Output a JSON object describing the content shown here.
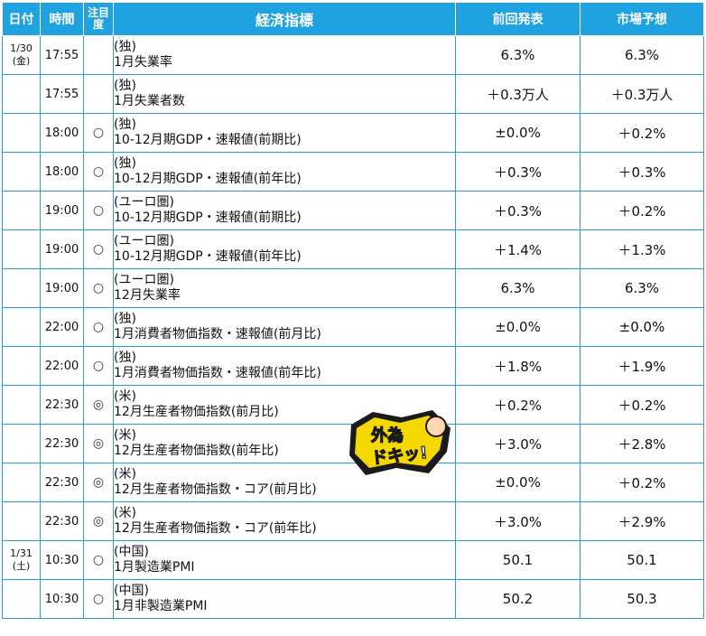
{
  "headers": {
    "date": "日付",
    "time": "時間",
    "attention": "注目度",
    "indicator": "経済指標",
    "previous": "前回発表",
    "forecast": "市場予想"
  },
  "rows": [
    {
      "date": "1/30\n(金)",
      "time": "17:55",
      "mark": "",
      "region": "(独)",
      "name": "1月失業率",
      "previous": "6.3%",
      "forecast": "6.3%"
    },
    {
      "date": "",
      "time": "17:55",
      "mark": "",
      "region": "(独)",
      "name": "1月失業者数",
      "previous": "＋0.3万人",
      "forecast": "＋0.3万人"
    },
    {
      "date": "",
      "time": "18:00",
      "mark": "○",
      "region": "(独)",
      "name": "10-12月期GDP・速報値(前期比)",
      "previous": "±0.0%",
      "forecast": "＋0.2%"
    },
    {
      "date": "",
      "time": "18:00",
      "mark": "○",
      "region": "(独)",
      "name": "10-12月期GDP・速報値(前年比)",
      "previous": "＋0.3%",
      "forecast": "＋0.3%"
    },
    {
      "date": "",
      "time": "19:00",
      "mark": "○",
      "region": "(ユーロ圏)",
      "name": "10-12月期GDP・速報値(前期比)",
      "previous": "＋0.3%",
      "forecast": "＋0.2%"
    },
    {
      "date": "",
      "time": "19:00",
      "mark": "○",
      "region": "(ユーロ圏)",
      "name": "10-12月期GDP・速報値(前年比)",
      "previous": "＋1.4%",
      "forecast": "＋1.3%"
    },
    {
      "date": "",
      "time": "19:00",
      "mark": "○",
      "region": "(ユーロ圏)",
      "name": "12月失業率",
      "previous": "6.3%",
      "forecast": "6.3%"
    },
    {
      "date": "",
      "time": "22:00",
      "mark": "○",
      "region": "(独)",
      "name": "1月消費者物価指数・速報値(前月比)",
      "previous": "±0.0%",
      "forecast": "±0.0%"
    },
    {
      "date": "",
      "time": "22:00",
      "mark": "○",
      "region": "(独)",
      "name": "1月消費者物価指数・速報値(前年比)",
      "previous": "＋1.8%",
      "forecast": "＋1.9%"
    },
    {
      "date": "",
      "time": "22:30",
      "mark": "◎",
      "region": "(米)",
      "name": "12月生産者物価指数(前月比)",
      "previous": "＋0.2%",
      "forecast": "＋0.2%"
    },
    {
      "date": "",
      "time": "22:30",
      "mark": "◎",
      "region": "(米)",
      "name": "12月生産者物価指数(前年比)",
      "previous": "＋3.0%",
      "forecast": "＋2.8%"
    },
    {
      "date": "",
      "time": "22:30",
      "mark": "◎",
      "region": "(米)",
      "name": "12月生産者物価指数・コア(前月比)",
      "previous": "±0.0%",
      "forecast": "＋0.2%"
    },
    {
      "date": "",
      "time": "22:30",
      "mark": "◎",
      "region": "(米)",
      "name": "12月生産者物価指数・コア(前年比)",
      "previous": "＋3.0%",
      "forecast": "＋2.9%"
    },
    {
      "date": "1/31\n(土)",
      "time": "10:30",
      "mark": "○",
      "region": "(中国)",
      "name": "1月製造業PMI",
      "previous": "50.1",
      "forecast": "50.1"
    },
    {
      "date": "",
      "time": "10:30",
      "mark": "○",
      "region": "(中国)",
      "name": "1月非製造業PMI",
      "previous": "50.2",
      "forecast": "50.3"
    }
  ],
  "badge": {
    "text": "外為ドキッ!",
    "line1": "外為",
    "line2": "ドキッ!"
  },
  "colors": {
    "header_bg": "#1fa3e0",
    "border": "#2a9bd6"
  }
}
